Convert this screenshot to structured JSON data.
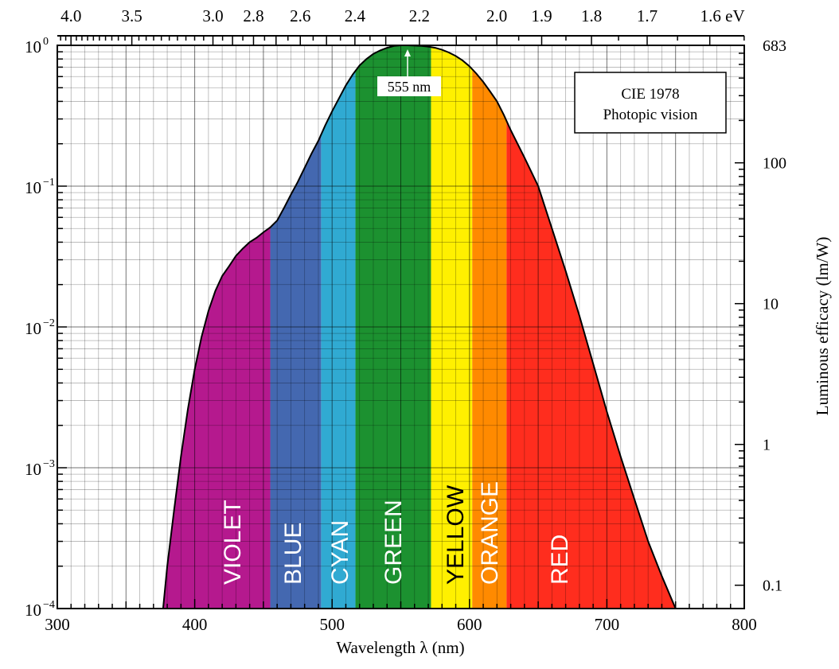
{
  "chart_data": {
    "type": "area",
    "title": "",
    "annotation_box": [
      "CIE 1978",
      "Photopic vision"
    ],
    "peak_label": "555 nm",
    "xlabel": "Wavelength λ  (nm)",
    "ylabel_right": "Luminous efficacy   (lm/W)",
    "x_range": [
      300,
      800
    ],
    "y_scale": "log",
    "y_range": [
      0.0001,
      1
    ],
    "x_ticks": [
      300,
      400,
      500,
      600,
      700,
      800
    ],
    "x_tick_labels": [
      "300",
      "400",
      "500",
      "600",
      "700",
      "800"
    ],
    "y_ticks": [
      {
        "value": 1,
        "base": "10",
        "exp": "0"
      },
      {
        "value": 0.1,
        "base": "10",
        "exp": "−1"
      },
      {
        "value": 0.01,
        "base": "10",
        "exp": "−2"
      },
      {
        "value": 0.001,
        "base": "10",
        "exp": "−3"
      },
      {
        "value": 0.0001,
        "base": "10",
        "exp": "−4"
      }
    ],
    "top_axis": {
      "quantity": "photon energy (eV)",
      "ticks": [
        {
          "value": 4.0,
          "label": "4.0"
        },
        {
          "value": 3.5,
          "label": "3.5"
        },
        {
          "value": 3.0,
          "label": "3.0"
        },
        {
          "value": 2.8,
          "label": "2.8"
        },
        {
          "value": 2.6,
          "label": "2.6"
        },
        {
          "value": 2.4,
          "label": "2.4"
        },
        {
          "value": 2.2,
          "label": "2.2"
        },
        {
          "value": 2.0,
          "label": "2.0"
        },
        {
          "value": 1.9,
          "label": "1.9"
        },
        {
          "value": 1.8,
          "label": "1.8"
        },
        {
          "value": 1.7,
          "label": "1.7"
        },
        {
          "value": 1.6,
          "label": "1.6 eV"
        }
      ]
    },
    "right_axis": {
      "quantity": "luminous efficacy (lm/W)",
      "ticks": [
        {
          "value": 683,
          "label": "683"
        },
        {
          "value": 100,
          "label": "100"
        },
        {
          "value": 10,
          "label": "10"
        },
        {
          "value": 1,
          "label": "1"
        },
        {
          "value": 0.1,
          "label": "0.1"
        }
      ]
    },
    "series": [
      {
        "x": [
          377,
          380,
          385,
          390,
          395,
          400,
          405,
          410,
          415,
          420,
          425,
          430,
          435,
          440,
          445,
          450,
          455,
          460,
          465,
          470,
          475,
          480,
          485,
          490,
          495,
          500,
          505,
          510,
          515,
          520,
          525,
          530,
          535,
          540,
          545,
          550,
          555,
          560,
          565,
          570,
          575,
          580,
          585,
          590,
          595,
          600,
          605,
          610,
          615,
          620,
          625,
          630,
          640,
          650,
          660,
          670,
          680,
          690,
          700,
          710,
          720,
          730,
          740,
          750
        ],
        "y": [
          0.0001,
          0.0002,
          0.0005,
          0.0012,
          0.0026,
          0.005,
          0.0085,
          0.013,
          0.018,
          0.023,
          0.027,
          0.032,
          0.036,
          0.04,
          0.043,
          0.047,
          0.051,
          0.057,
          0.07,
          0.087,
          0.107,
          0.135,
          0.17,
          0.21,
          0.27,
          0.34,
          0.42,
          0.52,
          0.62,
          0.72,
          0.8,
          0.87,
          0.92,
          0.96,
          0.99,
          1.0,
          1.0,
          0.995,
          0.99,
          0.98,
          0.96,
          0.93,
          0.89,
          0.84,
          0.78,
          0.71,
          0.63,
          0.55,
          0.47,
          0.4,
          0.32,
          0.25,
          0.16,
          0.1,
          0.05,
          0.025,
          0.012,
          0.0055,
          0.0025,
          0.0012,
          0.0006,
          0.0003,
          0.00017,
          0.0001
        ]
      }
    ],
    "bands": [
      {
        "label": "VIOLET",
        "from": 377,
        "to": 455,
        "color": "#b5198e",
        "label_x": 427,
        "label_color": "light"
      },
      {
        "label": "BLUE",
        "from": 455,
        "to": 492,
        "color": "#4468b0",
        "label_x": 471,
        "label_color": "light"
      },
      {
        "label": "CYAN",
        "from": 492,
        "to": 517,
        "color": "#30aad2",
        "label_x": 505,
        "label_color": "light"
      },
      {
        "label": "GREEN",
        "from": 517,
        "to": 572,
        "color": "#1c9130",
        "label_x": 544,
        "label_color": "light"
      },
      {
        "label": "YELLOW",
        "from": 572,
        "to": 602,
        "color": "#fff000",
        "label_x": 589,
        "label_color": "dark"
      },
      {
        "label": "ORANGE",
        "from": 602,
        "to": 627,
        "color": "#ff8a00",
        "label_x": 614,
        "label_color": "light"
      },
      {
        "label": "RED",
        "from": 627,
        "to": 750,
        "color": "#ff2d1e",
        "label_x": 665,
        "label_color": "light"
      }
    ],
    "grid": true
  }
}
